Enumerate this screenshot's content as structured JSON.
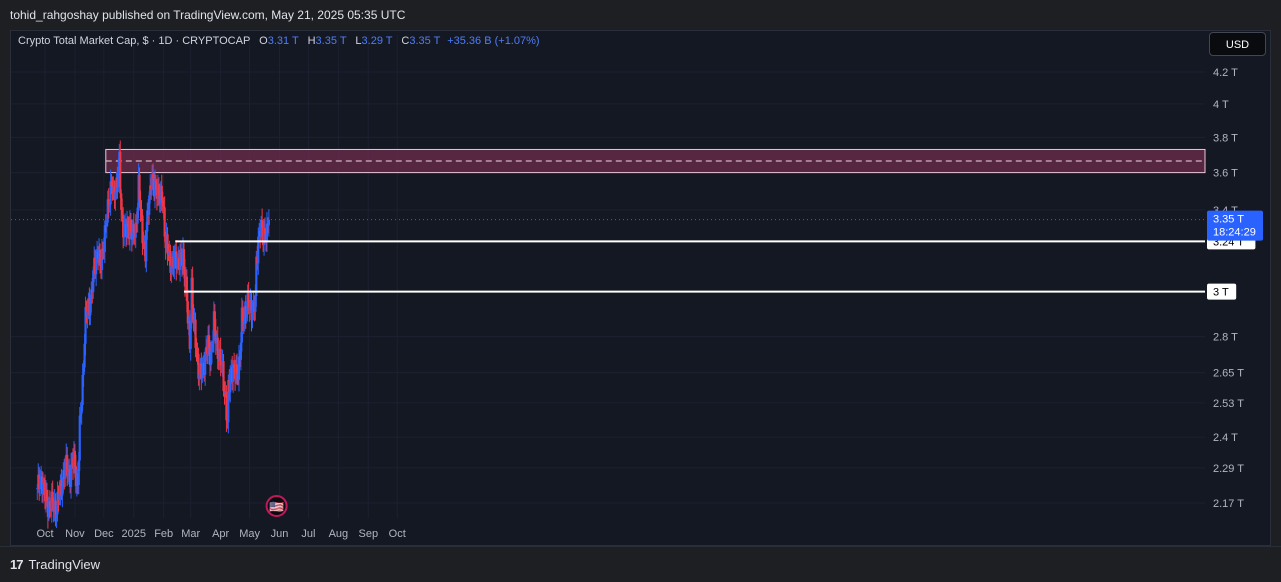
{
  "header": {
    "published": "tohid_rahgoshay published on TradingView.com, May 21, 2025 05:35 UTC"
  },
  "legend": {
    "symbol": "Crypto Total Market Cap, $ · 1D · CRYPTOCAP",
    "open_label": "O",
    "open": "3.31 T",
    "high_label": "H",
    "high": "3.35 T",
    "low_label": "L",
    "low": "3.29 T",
    "close_label": "C",
    "close": "3.35 T",
    "change": "+35.36 B (+1.07%)"
  },
  "currency_button": "USD",
  "footer": {
    "brand": "TradingView",
    "logo_glyph": "17"
  },
  "colors": {
    "up": "#2962ff",
    "down": "#f23645",
    "zone": "#6e2c4e",
    "level": "#ffffff",
    "price_tag": "#2962ff"
  },
  "chart_data": {
    "type": "candlestick",
    "title": "Crypto Total Market Cap",
    "y_unit": "T",
    "y_scale": "log",
    "ylim": [
      2.1,
      4.4
    ],
    "y_ticks": [
      {
        "v": 4.2,
        "label": "4.2 T"
      },
      {
        "v": 4.0,
        "label": "4 T"
      },
      {
        "v": 3.8,
        "label": "3.8 T"
      },
      {
        "v": 3.6,
        "label": "3.6 T"
      },
      {
        "v": 3.4,
        "label": "3.4 T"
      },
      {
        "v": 2.8,
        "label": "2.8 T"
      },
      {
        "v": 2.65,
        "label": "2.65 T"
      },
      {
        "v": 2.53,
        "label": "2.53 T"
      },
      {
        "v": 2.4,
        "label": "2.4 T"
      },
      {
        "v": 2.29,
        "label": "2.29 T"
      },
      {
        "v": 2.17,
        "label": "2.17 T"
      }
    ],
    "x_ticks": [
      {
        "date": "2024-10-01",
        "label": "Oct"
      },
      {
        "date": "2024-11-01",
        "label": "Nov"
      },
      {
        "date": "2024-12-01",
        "label": "Dec"
      },
      {
        "date": "2025-01-01",
        "label": "2025"
      },
      {
        "date": "2025-02-01",
        "label": "Feb"
      },
      {
        "date": "2025-03-01",
        "label": "Mar"
      },
      {
        "date": "2025-04-01",
        "label": "Apr"
      },
      {
        "date": "2025-05-01",
        "label": "May"
      },
      {
        "date": "2025-06-01",
        "label": "Jun"
      },
      {
        "date": "2025-07-01",
        "label": "Jul"
      },
      {
        "date": "2025-08-01",
        "label": "Aug"
      },
      {
        "date": "2025-09-01",
        "label": "Sep"
      },
      {
        "date": "2025-10-01",
        "label": "Oct"
      }
    ],
    "price_path": [
      [
        "2024-09-23",
        2.22
      ],
      [
        "2024-09-28",
        2.25
      ],
      [
        "2024-10-03",
        2.16
      ],
      [
        "2024-10-07",
        2.17
      ],
      [
        "2024-10-12",
        2.15
      ],
      [
        "2024-10-17",
        2.21
      ],
      [
        "2024-10-22",
        2.3
      ],
      [
        "2024-10-27",
        2.27
      ],
      [
        "2024-10-31",
        2.32
      ],
      [
        "2024-11-04",
        2.23
      ],
      [
        "2024-11-06",
        2.43
      ],
      [
        "2024-11-09",
        2.62
      ],
      [
        "2024-11-12",
        2.87
      ],
      [
        "2024-11-15",
        2.94
      ],
      [
        "2024-11-18",
        2.97
      ],
      [
        "2024-11-21",
        3.12
      ],
      [
        "2024-11-25",
        3.2
      ],
      [
        "2024-11-27",
        3.1
      ],
      [
        "2024-11-30",
        3.22
      ],
      [
        "2024-12-03",
        3.3
      ],
      [
        "2024-12-06",
        3.45
      ],
      [
        "2024-12-09",
        3.55
      ],
      [
        "2024-12-11",
        3.45
      ],
      [
        "2024-12-14",
        3.55
      ],
      [
        "2024-12-17",
        3.65
      ],
      [
        "2024-12-19",
        3.38
      ],
      [
        "2024-12-22",
        3.31
      ],
      [
        "2024-12-25",
        3.28
      ],
      [
        "2024-12-28",
        3.33
      ],
      [
        "2024-12-31",
        3.26
      ],
      [
        "2025-01-03",
        3.3
      ],
      [
        "2025-01-06",
        3.53
      ],
      [
        "2025-01-09",
        3.32
      ],
      [
        "2025-01-13",
        3.18
      ],
      [
        "2025-01-16",
        3.42
      ],
      [
        "2025-01-19",
        3.58
      ],
      [
        "2025-01-22",
        3.5
      ],
      [
        "2025-01-25",
        3.53
      ],
      [
        "2025-01-28",
        3.45
      ],
      [
        "2025-01-31",
        3.47
      ],
      [
        "2025-02-03",
        3.22
      ],
      [
        "2025-02-06",
        3.18
      ],
      [
        "2025-02-10",
        3.12
      ],
      [
        "2025-02-14",
        3.17
      ],
      [
        "2025-02-18",
        3.13
      ],
      [
        "2025-02-21",
        3.18
      ],
      [
        "2025-02-24",
        3.02
      ],
      [
        "2025-02-26",
        2.87
      ],
      [
        "2025-02-28",
        2.78
      ],
      [
        "2025-03-02",
        3.03
      ],
      [
        "2025-03-04",
        2.85
      ],
      [
        "2025-03-07",
        2.75
      ],
      [
        "2025-03-10",
        2.63
      ],
      [
        "2025-03-13",
        2.66
      ],
      [
        "2025-03-16",
        2.72
      ],
      [
        "2025-03-19",
        2.76
      ],
      [
        "2025-03-22",
        2.72
      ],
      [
        "2025-03-25",
        2.85
      ],
      [
        "2025-03-28",
        2.77
      ],
      [
        "2025-03-31",
        2.7
      ],
      [
        "2025-04-03",
        2.66
      ],
      [
        "2025-04-06",
        2.55
      ],
      [
        "2025-04-08",
        2.43
      ],
      [
        "2025-04-09",
        2.58
      ],
      [
        "2025-04-12",
        2.67
      ],
      [
        "2025-04-15",
        2.64
      ],
      [
        "2025-04-18",
        2.66
      ],
      [
        "2025-04-21",
        2.7
      ],
      [
        "2025-04-23",
        2.87
      ],
      [
        "2025-04-26",
        2.91
      ],
      [
        "2025-04-29",
        2.93
      ],
      [
        "2025-05-02",
        2.94
      ],
      [
        "2025-05-05",
        2.91
      ],
      [
        "2025-05-07",
        2.95
      ],
      [
        "2025-05-08",
        3.14
      ],
      [
        "2025-05-10",
        3.26
      ],
      [
        "2025-05-12",
        3.3
      ],
      [
        "2025-05-15",
        3.27
      ],
      [
        "2025-05-17",
        3.3
      ],
      [
        "2025-05-19",
        3.27
      ],
      [
        "2025-05-21",
        3.35
      ]
    ],
    "annotations": {
      "resistance_zone": {
        "from": "2024-12-03",
        "low": 3.6,
        "high": 3.73
      },
      "levels": [
        {
          "from": "2025-02-13",
          "value": 3.24,
          "label": "3.24 T"
        },
        {
          "from": "2025-02-22",
          "value": 3.0,
          "label": "3 T"
        }
      ],
      "last_price": {
        "value": 3.35,
        "label": "3.35 T",
        "countdown": "18:24:29"
      },
      "event_marker": {
        "date": "2025-05-29",
        "glyph": "🇺🇸"
      }
    }
  }
}
